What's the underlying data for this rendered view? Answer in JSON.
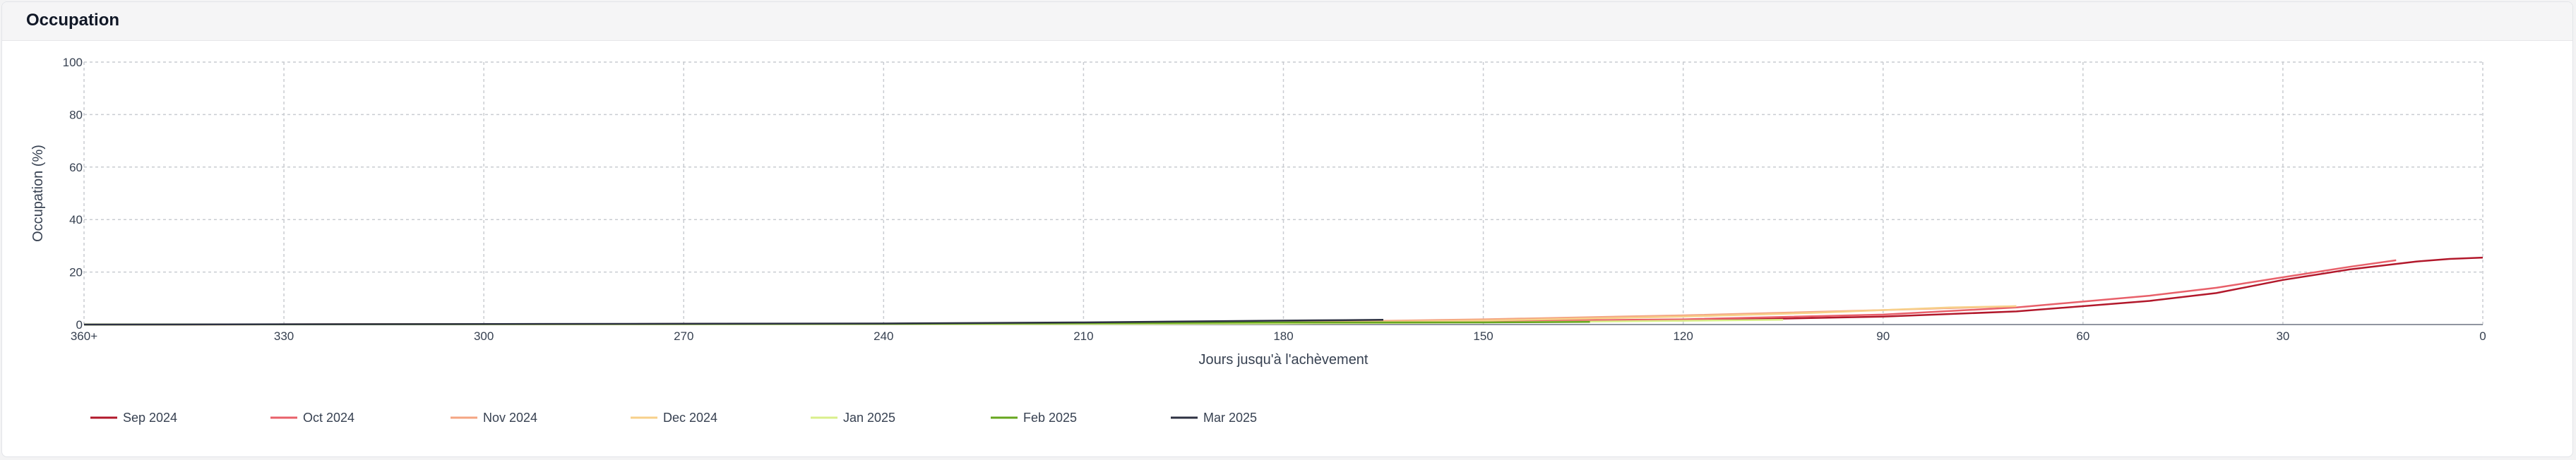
{
  "panel": {
    "title": "Occupation"
  },
  "chart_data": {
    "type": "line",
    "xlabel": "Jours jusqu'à l'achèvement",
    "ylabel": "Occupation (%)",
    "xlim": [
      360,
      0
    ],
    "ylim": [
      0,
      100
    ],
    "x_ticks": [
      {
        "value": 360,
        "label": "360+"
      },
      {
        "value": 330,
        "label": "330"
      },
      {
        "value": 300,
        "label": "300"
      },
      {
        "value": 270,
        "label": "270"
      },
      {
        "value": 240,
        "label": "240"
      },
      {
        "value": 210,
        "label": "210"
      },
      {
        "value": 180,
        "label": "180"
      },
      {
        "value": 150,
        "label": "150"
      },
      {
        "value": 120,
        "label": "120"
      },
      {
        "value": 90,
        "label": "90"
      },
      {
        "value": 60,
        "label": "60"
      },
      {
        "value": 30,
        "label": "30"
      },
      {
        "value": 0,
        "label": "0"
      }
    ],
    "y_ticks": [
      {
        "value": 0,
        "label": "0"
      },
      {
        "value": 20,
        "label": "20"
      },
      {
        "value": 40,
        "label": "40"
      },
      {
        "value": 60,
        "label": "60"
      },
      {
        "value": 80,
        "label": "80"
      },
      {
        "value": 100,
        "label": "100"
      }
    ],
    "grid": true,
    "legend_position": "bottom-left",
    "series": [
      {
        "name": "Sep 2024",
        "color": "#b2182b",
        "points": [
          [
            360,
            0
          ],
          [
            240,
            0.3
          ],
          [
            180,
            0.5
          ],
          [
            120,
            1.5
          ],
          [
            90,
            3
          ],
          [
            70,
            5
          ],
          [
            50,
            9
          ],
          [
            40,
            12
          ],
          [
            30,
            17
          ],
          [
            20,
            21
          ],
          [
            10,
            24
          ],
          [
            5,
            25
          ],
          [
            0,
            25.5
          ]
        ]
      },
      {
        "name": "Oct 2024",
        "color": "#e8606a",
        "points": [
          [
            360,
            0
          ],
          [
            240,
            0.3
          ],
          [
            180,
            0.6
          ],
          [
            120,
            2
          ],
          [
            90,
            3.8
          ],
          [
            70,
            6.5
          ],
          [
            50,
            11
          ],
          [
            40,
            14
          ],
          [
            30,
            18
          ],
          [
            25,
            20
          ],
          [
            20,
            22
          ],
          [
            13,
            24.5
          ]
        ]
      },
      {
        "name": "Nov 2024",
        "color": "#f4a582",
        "points": [
          [
            360,
            0
          ],
          [
            210,
            0.3
          ],
          [
            180,
            0.8
          ],
          [
            150,
            2
          ],
          [
            120,
            3.5
          ],
          [
            90,
            5.5
          ],
          [
            70,
            7
          ]
        ]
      },
      {
        "name": "Dec 2024",
        "color": "#f7d08a",
        "points": [
          [
            360,
            0
          ],
          [
            210,
            0.3
          ],
          [
            180,
            0.6
          ],
          [
            150,
            1.5
          ],
          [
            120,
            3
          ],
          [
            100,
            4.5
          ],
          [
            80,
            6.5
          ],
          [
            70,
            7
          ]
        ]
      },
      {
        "name": "Jan 2025",
        "color": "#d9ef8b",
        "points": [
          [
            360,
            0
          ],
          [
            210,
            0.2
          ],
          [
            180,
            0.4
          ],
          [
            150,
            0.8
          ],
          [
            130,
            1.2
          ],
          [
            105,
            1.8
          ]
        ]
      },
      {
        "name": "Feb 2025",
        "color": "#66a61e",
        "points": [
          [
            360,
            0
          ],
          [
            240,
            0.3
          ],
          [
            200,
            0.6
          ],
          [
            180,
            0.8
          ],
          [
            150,
            0.8
          ],
          [
            134,
            1
          ]
        ]
      },
      {
        "name": "Mar 2025",
        "color": "#2d3142",
        "points": [
          [
            360,
            0
          ],
          [
            240,
            0.4
          ],
          [
            210,
            0.8
          ],
          [
            190,
            1.3
          ],
          [
            175,
            1.6
          ],
          [
            165,
            1.8
          ]
        ]
      }
    ]
  }
}
